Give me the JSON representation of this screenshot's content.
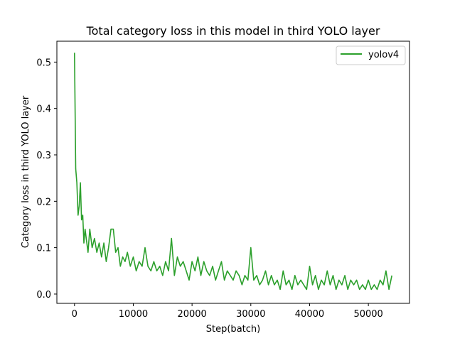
{
  "chart_data": {
    "type": "line",
    "title": "Total category loss in this model in third YOLO layer",
    "xlabel": "Step(batch)",
    "ylabel": "Category loss in third YOLO layer",
    "xlim": [
      -3000,
      57000
    ],
    "ylim": [
      -0.02,
      0.545
    ],
    "xticks": [
      0,
      10000,
      20000,
      30000,
      40000,
      50000
    ],
    "yticks": [
      0.0,
      0.1,
      0.2,
      0.3,
      0.4,
      0.5
    ],
    "xtick_labels": [
      "0",
      "10000",
      "20000",
      "30000",
      "40000",
      "50000"
    ],
    "ytick_labels": [
      "0.0",
      "0.1",
      "0.2",
      "0.3",
      "0.4",
      "0.5"
    ],
    "grid": false,
    "legend_position": "top-right",
    "series": [
      {
        "name": "yolov4",
        "color": "#2ca02c",
        "x": [
          0,
          200,
          400,
          600,
          800,
          1000,
          1200,
          1400,
          1600,
          1800,
          2000,
          2300,
          2600,
          3000,
          3400,
          3800,
          4200,
          4600,
          5000,
          5400,
          5800,
          6200,
          6600,
          7000,
          7400,
          7800,
          8200,
          8600,
          9000,
          9500,
          10000,
          10500,
          11000,
          11500,
          12000,
          12500,
          13000,
          13500,
          14000,
          14500,
          15000,
          15500,
          16000,
          16500,
          17000,
          17500,
          18000,
          18500,
          19000,
          19500,
          20000,
          20500,
          21000,
          21500,
          22000,
          22500,
          23000,
          23500,
          24000,
          24500,
          25000,
          25500,
          26000,
          26500,
          27000,
          27500,
          28000,
          28500,
          29000,
          29500,
          30000,
          30500,
          31000,
          31500,
          32000,
          32500,
          33000,
          33500,
          34000,
          34500,
          35000,
          35500,
          36000,
          36500,
          37000,
          37500,
          38000,
          38500,
          39000,
          39500,
          40000,
          40500,
          41000,
          41500,
          42000,
          42500,
          43000,
          43500,
          44000,
          44500,
          45000,
          45500,
          46000,
          46500,
          47000,
          47500,
          48000,
          48500,
          49000,
          49500,
          50000,
          50500,
          51000,
          51500,
          52000,
          52500,
          53000,
          53500,
          54000
        ],
        "values": [
          0.52,
          0.27,
          0.24,
          0.17,
          0.19,
          0.24,
          0.16,
          0.17,
          0.11,
          0.14,
          0.12,
          0.09,
          0.14,
          0.1,
          0.12,
          0.09,
          0.11,
          0.08,
          0.11,
          0.07,
          0.1,
          0.14,
          0.14,
          0.09,
          0.1,
          0.06,
          0.08,
          0.07,
          0.09,
          0.06,
          0.08,
          0.05,
          0.07,
          0.06,
          0.1,
          0.06,
          0.05,
          0.07,
          0.05,
          0.06,
          0.04,
          0.07,
          0.05,
          0.12,
          0.04,
          0.08,
          0.06,
          0.07,
          0.05,
          0.03,
          0.07,
          0.05,
          0.08,
          0.04,
          0.07,
          0.05,
          0.04,
          0.06,
          0.03,
          0.05,
          0.07,
          0.03,
          0.05,
          0.04,
          0.03,
          0.05,
          0.04,
          0.02,
          0.04,
          0.03,
          0.1,
          0.03,
          0.04,
          0.02,
          0.03,
          0.05,
          0.02,
          0.04,
          0.02,
          0.03,
          0.01,
          0.05,
          0.02,
          0.03,
          0.01,
          0.04,
          0.02,
          0.03,
          0.02,
          0.01,
          0.06,
          0.02,
          0.04,
          0.01,
          0.03,
          0.02,
          0.05,
          0.02,
          0.04,
          0.01,
          0.03,
          0.02,
          0.04,
          0.01,
          0.03,
          0.02,
          0.03,
          0.01,
          0.02,
          0.01,
          0.03,
          0.01,
          0.02,
          0.01,
          0.03,
          0.02,
          0.05,
          0.01,
          0.04
        ]
      }
    ]
  }
}
